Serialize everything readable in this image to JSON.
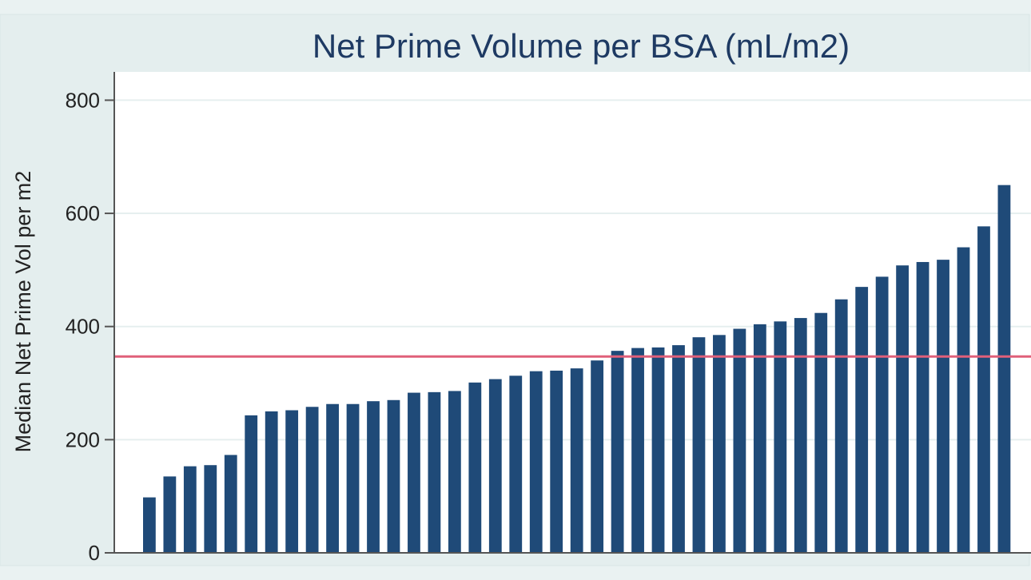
{
  "chart_data": {
    "type": "bar",
    "title": "Net Prime Volume per BSA (mL/m2)",
    "xlabel": "",
    "ylabel": "Median Net Prime Vol per m2",
    "ylim": [
      0,
      850
    ],
    "yticks": [
      0,
      200,
      400,
      600,
      800
    ],
    "grid": true,
    "reference_line": 347,
    "values": [
      98,
      135,
      153,
      155,
      173,
      243,
      250,
      252,
      258,
      263,
      263,
      268,
      270,
      283,
      284,
      286,
      301,
      307,
      313,
      321,
      322,
      326,
      340,
      357,
      362,
      363,
      367,
      381,
      385,
      396,
      404,
      409,
      415,
      424,
      448,
      470,
      488,
      508,
      514,
      518,
      540,
      577,
      650
    ],
    "colors": {
      "bar": "#1f4a78",
      "reference_line": "#e0607a",
      "plot_background": "#ffffff",
      "page_background": "#eaf2f2",
      "gridline": "#e6efef",
      "axis": "#555555",
      "title": "#1e3a63"
    }
  }
}
